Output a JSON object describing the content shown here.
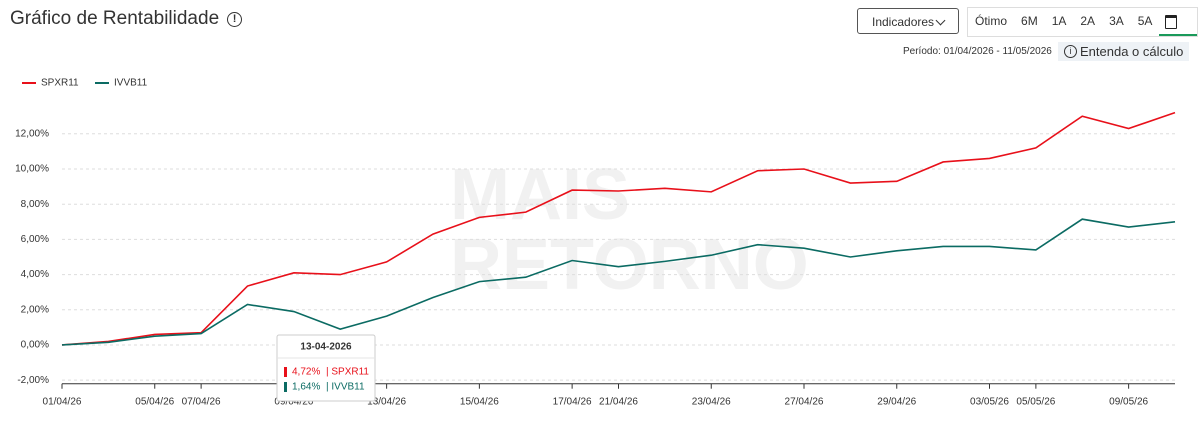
{
  "header": {
    "title": "Gráfico de Rentabilidade",
    "indicators": "Indicadores",
    "ranges": [
      "Ótimo",
      "6M",
      "1A",
      "2A",
      "3A",
      "5A"
    ],
    "period": "Período: 01/04/2026 - 11/05/2026",
    "explain": "Entenda o cálculo"
  },
  "chart_data": {
    "type": "line",
    "categories": [
      "01/04/26",
      null,
      "05/04/26",
      "07/04/26",
      null,
      "09/04/26",
      null,
      "13/04/26",
      null,
      "15/04/26",
      null,
      "17/04/26",
      "21/04/26",
      null,
      "23/04/26",
      null,
      "27/04/26",
      null,
      "29/04/26",
      null,
      "03/05/26",
      "05/05/26",
      null,
      "09/05/26",
      null
    ],
    "series": [
      {
        "name": "SPXR11",
        "color": "#e8101a",
        "values": [
          0,
          0.2,
          0.6,
          0.7,
          3.35,
          4.1,
          4.0,
          4.72,
          6.3,
          7.25,
          7.55,
          8.8,
          8.75,
          8.9,
          8.7,
          9.9,
          10.0,
          9.2,
          9.3,
          10.4,
          10.6,
          11.2,
          13.0,
          12.3,
          13.2
        ]
      },
      {
        "name": "IVVB11",
        "color": "#0b6b63",
        "values": [
          0,
          0.15,
          0.5,
          0.65,
          2.3,
          1.9,
          0.9,
          1.64,
          2.7,
          3.6,
          3.85,
          4.8,
          4.45,
          4.75,
          5.1,
          5.7,
          5.5,
          5.0,
          5.35,
          5.6,
          5.6,
          5.4,
          7.15,
          6.7,
          7.0
        ]
      }
    ],
    "ylim": [
      -2.2,
      14
    ],
    "yticks": [
      {
        "value": -2,
        "label": "-2,00%"
      },
      {
        "value": 0,
        "label": "0,00%"
      },
      {
        "value": 2,
        "label": "2,00%"
      },
      {
        "value": 4,
        "label": "4,00%"
      },
      {
        "value": 6,
        "label": "6,00%"
      },
      {
        "value": 8,
        "label": "8,00%"
      },
      {
        "value": 10,
        "label": "10,00%"
      },
      {
        "value": 12,
        "label": "12,00%"
      }
    ],
    "grid": true,
    "watermark": [
      "MAIS",
      "RETORNO"
    ],
    "tooltip": {
      "title": "13-04-2026",
      "entries": [
        {
          "value": "4,72%",
          "name": "| SPXR11"
        },
        {
          "value": "1,64%",
          "name": "| IVVB11"
        }
      ]
    }
  }
}
